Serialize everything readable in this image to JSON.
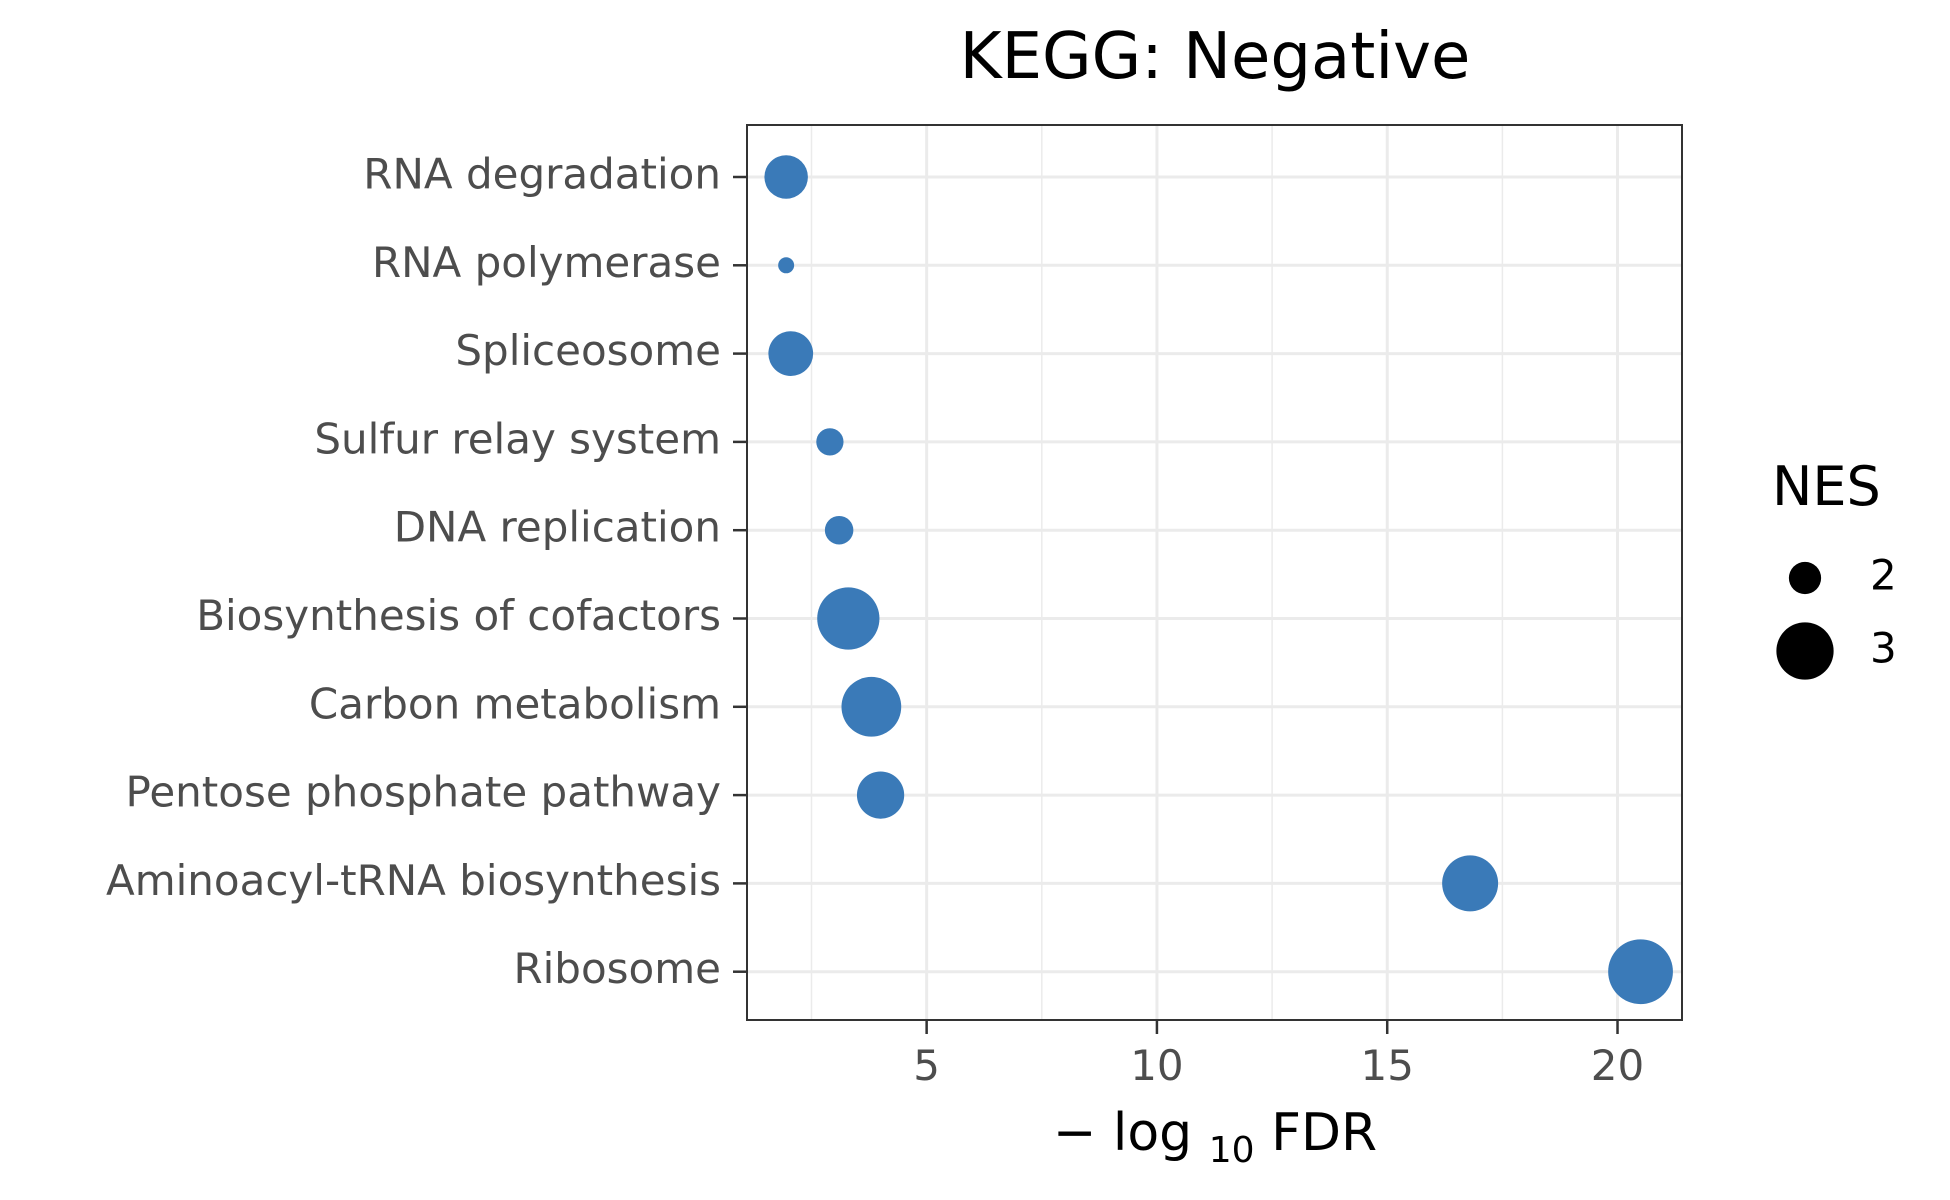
{
  "chart_data": {
    "type": "scatter",
    "title": "KEGG: Negative",
    "xlabel": {
      "minus": "−",
      "base": "log",
      "subscript": "10",
      "suffix": "FDR"
    },
    "ylabel": "",
    "xlim": [
      1.1,
      21.4
    ],
    "x_ticks": [
      5,
      10,
      15,
      20
    ],
    "categories": [
      "RNA degradation",
      "RNA polymerase",
      "Spliceosome",
      "Sulfur relay system",
      "DNA replication",
      "Biosynthesis of cofactors",
      "Carbon metabolism",
      "Pentose phosphate pathway",
      "Aminoacyl-tRNA biosynthesis",
      "Ribosome"
    ],
    "points": [
      {
        "category": "RNA degradation",
        "x": 1.95,
        "nes": 2.45
      },
      {
        "category": "RNA polymerase",
        "x": 1.95,
        "nes": 1.35
      },
      {
        "category": "Spliceosome",
        "x": 2.05,
        "nes": 2.5
      },
      {
        "category": "Sulfur relay system",
        "x": 2.9,
        "nes": 1.8
      },
      {
        "category": "DNA replication",
        "x": 3.1,
        "nes": 1.85
      },
      {
        "category": "Biosynthesis of cofactors",
        "x": 3.3,
        "nes": 3.2
      },
      {
        "category": "Carbon metabolism",
        "x": 3.8,
        "nes": 3.1
      },
      {
        "category": "Pentose phosphate pathway",
        "x": 4.0,
        "nes": 2.6
      },
      {
        "category": "Aminoacyl-tRNA biosynthesis",
        "x": 16.8,
        "nes": 2.95
      },
      {
        "category": "Ribosome",
        "x": 20.5,
        "nes": 3.3
      }
    ],
    "point_color": "#3a7ab8",
    "grid": true,
    "legend": {
      "title": "NES",
      "position": "right",
      "entries": [
        {
          "label": "2",
          "nes": 2
        },
        {
          "label": "3",
          "nes": 3
        }
      ],
      "marker_color": "#000000"
    }
  }
}
